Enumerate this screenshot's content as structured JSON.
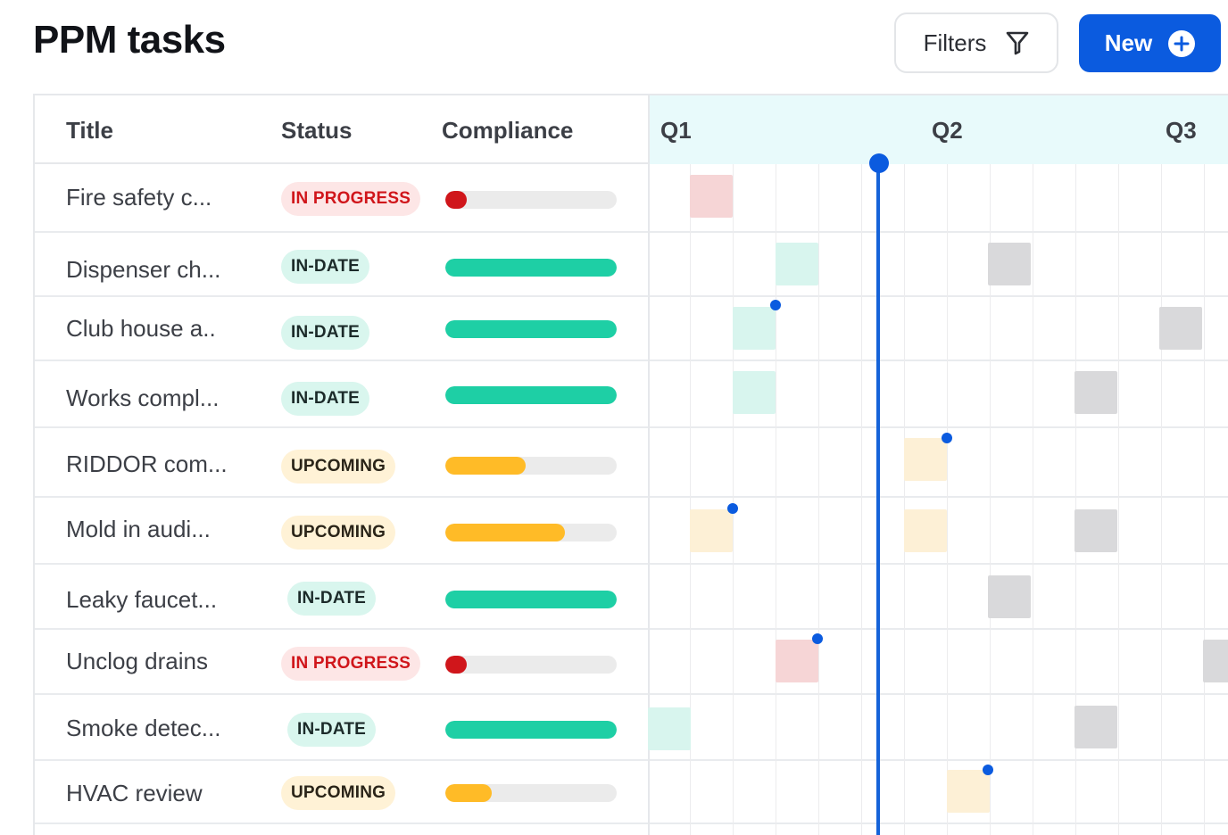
{
  "header": {
    "title": "PPM tasks",
    "filters_label": "Filters",
    "new_label": "New"
  },
  "columns": {
    "title": "Title",
    "status": "Status",
    "compliance": "Compliance"
  },
  "timeline": {
    "quarters": [
      "Q1",
      "Q2",
      "Q3"
    ]
  },
  "colors": {
    "accent": "#0b5bdf",
    "in_progress": "#d0161b",
    "in_date": "#1ecfa5",
    "upcoming": "#ffbb27"
  },
  "tasks": [
    {
      "title": "Fire safety c...",
      "status": "IN PROGRESS",
      "compliance_pct": 5
    },
    {
      "title": "Dispenser ch...",
      "status": "IN-DATE",
      "compliance_pct": 100
    },
    {
      "title": "Club house a..",
      "status": "IN-DATE",
      "compliance_pct": 100
    },
    {
      "title": "Works compl...",
      "status": "IN-DATE",
      "compliance_pct": 100
    },
    {
      "title": "RIDDOR com...",
      "status": "UPCOMING",
      "compliance_pct": 47
    },
    {
      "title": "Mold in audi...",
      "status": "UPCOMING",
      "compliance_pct": 70
    },
    {
      "title": "Leaky faucet...",
      "status": "IN-DATE",
      "compliance_pct": 100
    },
    {
      "title": "Unclog drains",
      "status": "IN PROGRESS",
      "compliance_pct": 5
    },
    {
      "title": "Smoke detec...",
      "status": "IN-DATE",
      "compliance_pct": 100
    },
    {
      "title": "HVAC review",
      "status": "UPCOMING",
      "compliance_pct": 27
    }
  ]
}
